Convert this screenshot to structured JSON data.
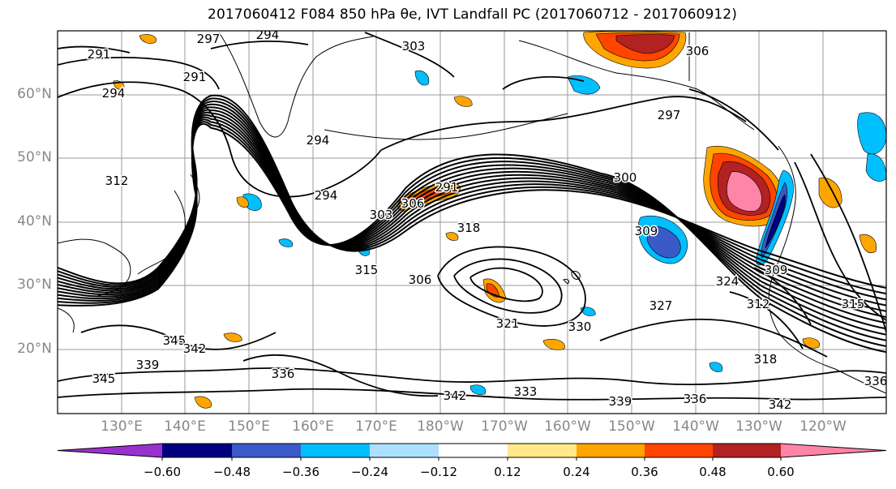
{
  "title": "2017060412 F084 850 hPa θe, IVT Landfall PC (2017060712 - 2017060912)",
  "lat_labels": [
    "60°N",
    "50°N",
    "40°N",
    "30°N",
    "20°N"
  ],
  "lon_labels": [
    "130°E",
    "140°E",
    "150°E",
    "160°E",
    "170°E",
    "180°W",
    "170°W",
    "160°W",
    "150°W",
    "140°W",
    "130°W",
    "120°W"
  ],
  "contour_labels": [
    "297",
    "294",
    "291",
    "291",
    "294",
    "303",
    "294",
    "294",
    "297",
    "300",
    "312",
    "291",
    "306",
    "303",
    "309",
    "318",
    "315",
    "306",
    "324",
    "309",
    "312",
    "327",
    "321",
    "330",
    "345",
    "342",
    "339",
    "345",
    "336",
    "333",
    "342",
    "339",
    "336",
    "342",
    "318",
    "315",
    "336",
    "306"
  ],
  "colorbar": {
    "colors": [
      "#9932CC",
      "#000080",
      "#3A5BC7",
      "#00BFFF",
      "#ADDFFF",
      "#FFFFFF",
      "#FFE98A",
      "#FFA500",
      "#FF4500",
      "#B22222",
      "#FF85A8"
    ],
    "tick_labels": [
      "−0.60",
      "−0.48",
      "−0.36",
      "−0.24",
      "−0.12",
      "0.12",
      "0.24",
      "0.36",
      "0.48",
      "0.60"
    ]
  }
}
